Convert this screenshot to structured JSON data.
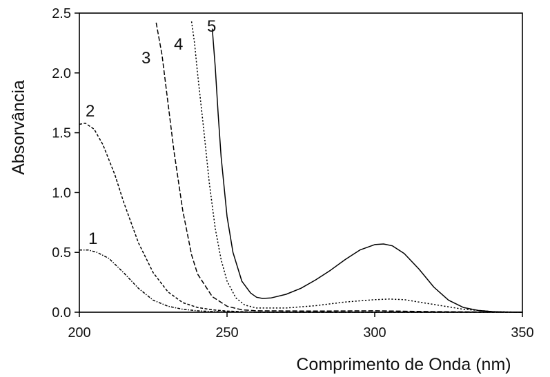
{
  "chart_data": {
    "type": "line",
    "title": "",
    "xlabel": "Comprimento de Onda (nm)",
    "ylabel": "Absorvância",
    "xlim": [
      200,
      350
    ],
    "ylim": [
      0,
      2.5
    ],
    "xticks": [
      200,
      250,
      300,
      350
    ],
    "yticks": [
      0.0,
      0.5,
      1.0,
      1.5,
      2.0,
      2.5
    ],
    "xtick_labels": [
      "200",
      "250",
      "300",
      "350"
    ],
    "ytick_labels": [
      "0.0",
      "0.5",
      "1.0",
      "1.5",
      "2.0",
      "2.5"
    ],
    "grid": false,
    "legend": "none",
    "series": [
      {
        "name": "1",
        "style": "dash-dot",
        "x": [
          200,
          203,
          206,
          210,
          215,
          220,
          225,
          230,
          235,
          240,
          245,
          250,
          260,
          350
        ],
        "y": [
          0.52,
          0.52,
          0.5,
          0.45,
          0.33,
          0.2,
          0.1,
          0.05,
          0.025,
          0.012,
          0.006,
          0.003,
          0.0,
          0.0
        ]
      },
      {
        "name": "2",
        "style": "dashed",
        "x": [
          200,
          202,
          205,
          208,
          212,
          215,
          220,
          225,
          230,
          235,
          240,
          245,
          250,
          260,
          350
        ],
        "y": [
          1.57,
          1.58,
          1.53,
          1.4,
          1.15,
          0.92,
          0.58,
          0.33,
          0.17,
          0.08,
          0.04,
          0.02,
          0.01,
          0.0,
          0.0
        ]
      },
      {
        "name": "3",
        "style": "long-dash",
        "x": [
          226,
          228,
          230,
          232,
          235,
          238,
          240,
          245,
          250,
          255,
          260,
          280,
          300,
          320,
          350
        ],
        "y": [
          2.42,
          2.15,
          1.75,
          1.35,
          0.85,
          0.48,
          0.32,
          0.13,
          0.05,
          0.02,
          0.012,
          0.01,
          0.012,
          0.005,
          0.0
        ]
      },
      {
        "name": "4",
        "style": "dotted",
        "x": [
          238,
          239,
          240,
          242,
          244,
          246,
          248,
          250,
          253,
          256,
          260,
          270,
          280,
          290,
          300,
          305,
          310,
          320,
          330,
          340,
          350
        ],
        "y": [
          2.43,
          2.25,
          2.0,
          1.55,
          1.08,
          0.7,
          0.44,
          0.26,
          0.12,
          0.06,
          0.035,
          0.035,
          0.055,
          0.085,
          0.105,
          0.11,
          0.105,
          0.065,
          0.025,
          0.005,
          0.0
        ]
      },
      {
        "name": "5",
        "style": "solid",
        "x": [
          245,
          246,
          247,
          248,
          250,
          252,
          255,
          258,
          260,
          262,
          265,
          270,
          275,
          280,
          285,
          290,
          295,
          300,
          303,
          306,
          310,
          315,
          320,
          325,
          330,
          335,
          340,
          345,
          350
        ],
        "y": [
          2.37,
          2.05,
          1.65,
          1.3,
          0.8,
          0.5,
          0.26,
          0.16,
          0.125,
          0.115,
          0.12,
          0.15,
          0.2,
          0.27,
          0.35,
          0.44,
          0.52,
          0.565,
          0.57,
          0.555,
          0.49,
          0.36,
          0.21,
          0.1,
          0.04,
          0.015,
          0.005,
          0.001,
          0.0
        ]
      }
    ]
  }
}
